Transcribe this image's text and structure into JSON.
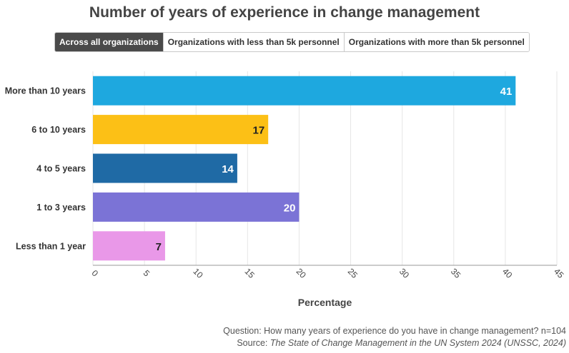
{
  "chart_title": "Number of years of experience in change management",
  "tabs": [
    {
      "label": "Across all organizations",
      "active": true
    },
    {
      "label": "Organizations with less than 5k personnel",
      "active": false
    },
    {
      "label": "Organizations with more than 5k personnel",
      "active": false
    }
  ],
  "chart_data": {
    "type": "bar",
    "orientation": "horizontal",
    "categories": [
      "More than 10 years",
      "6 to 10 years",
      "4 to 5 years",
      "1 to 3 years",
      "Less than 1 year"
    ],
    "values": [
      41,
      17,
      14,
      20,
      7
    ],
    "colors": [
      "#1ea8df",
      "#fcc016",
      "#1f6aa5",
      "#7b73d6",
      "#e998e8"
    ],
    "label_colors": [
      "#ffffff",
      "#222222",
      "#ffffff",
      "#ffffff",
      "#222222"
    ],
    "xlabel": "Percentage",
    "ylabel": "",
    "xlim": [
      0,
      45
    ],
    "xticks": [
      0,
      5,
      10,
      15,
      20,
      25,
      30,
      35,
      40,
      45
    ],
    "grid": true
  },
  "footer": {
    "question": "Question: How many years of experience do you have in change management? n=104",
    "source_prefix": "Source: ",
    "source_title": "The State of Change Management in the UN System 2024 (UNSSC, 2024)"
  }
}
